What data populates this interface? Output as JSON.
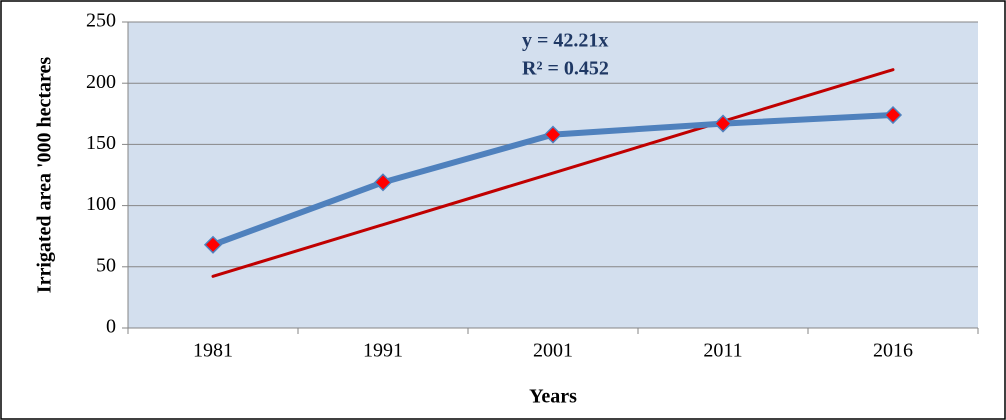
{
  "chart_data": {
    "type": "line",
    "x_label": "Years",
    "y_label": "Irrigated area '000 hectares",
    "categories": [
      "1981",
      "1991",
      "2001",
      "2011",
      "2016"
    ],
    "series": [
      {
        "color": "#4f81bd",
        "marker_color": "#ff0000",
        "values": [
          68,
          119,
          158,
          167,
          174
        ]
      },
      {
        "color": "#c00000",
        "values": [
          42.21,
          84.42,
          126.63,
          168.84,
          211.05
        ]
      }
    ],
    "annotations": [
      "y = 42.21x",
      "R² = 0.452"
    ],
    "annotation_color": "#1f3864",
    "plot_background": "#d3dfee",
    "ylim": [
      0,
      250
    ],
    "yticks": [
      0,
      50,
      100,
      150,
      200,
      250
    ],
    "grid": true
  }
}
